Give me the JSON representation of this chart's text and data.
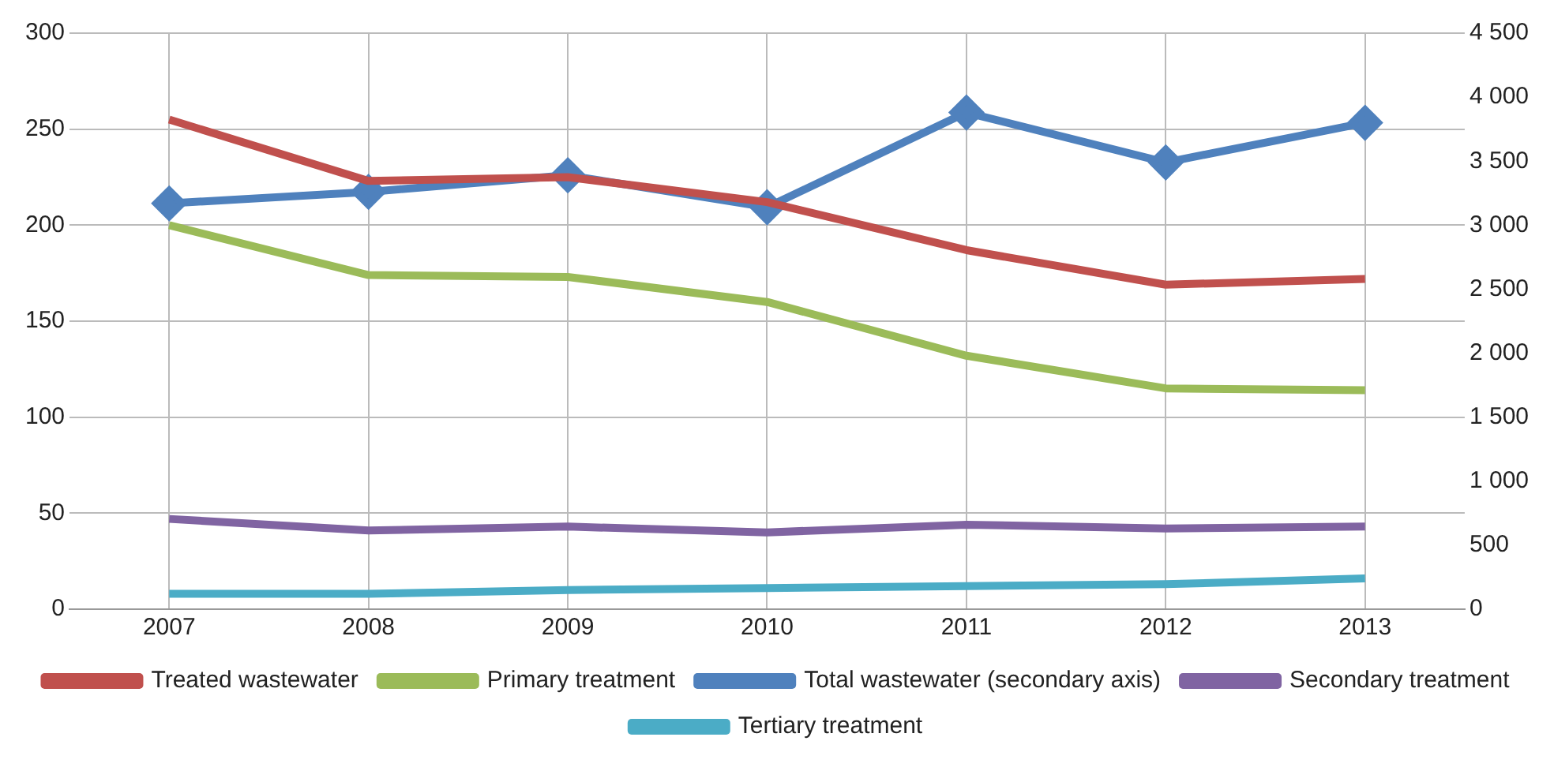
{
  "chart_data": {
    "type": "line",
    "categories": [
      "2007",
      "2008",
      "2009",
      "2010",
      "2011",
      "2012",
      "2013"
    ],
    "series": [
      {
        "name": "Treated wastewater",
        "color": "#c0504d",
        "values": [
          255,
          223,
          225,
          212,
          187,
          169,
          172
        ]
      },
      {
        "name": "Primary treatment",
        "color": "#9bbb59",
        "values": [
          200,
          174,
          173,
          160,
          132,
          115,
          114
        ]
      },
      {
        "name": "Total wastewater (secondary axis)",
        "color": "#4f81bd",
        "axis": "y2",
        "marker": "diamond",
        "values": [
          3170,
          3260,
          3390,
          3140,
          3880,
          3490,
          3800
        ]
      },
      {
        "name": "Secondary treatment",
        "color": "#8064a2",
        "values": [
          47,
          41,
          43,
          40,
          44,
          42,
          43
        ]
      },
      {
        "name": "Tertiary treatment",
        "color": "#4bacc6",
        "values": [
          8,
          8,
          10,
          11,
          12,
          13,
          16
        ]
      }
    ],
    "ylim": [
      0,
      300
    ],
    "yticks": [
      0,
      50,
      100,
      150,
      200,
      250,
      300
    ],
    "y2lim": [
      0,
      4500
    ],
    "y2ticks": [
      0,
      500,
      {
        "value": 1000,
        "label": "1 000"
      },
      {
        "value": 1500,
        "label": "1 500"
      },
      {
        "value": 2000,
        "label": "2 000"
      },
      {
        "value": 2500,
        "label": "2 500"
      },
      {
        "value": 3000,
        "label": "3 000"
      },
      {
        "value": 3500,
        "label": "3 500"
      },
      {
        "value": 4000,
        "label": "4 000"
      },
      {
        "value": 4500,
        "label": "4 500"
      }
    ],
    "grid": true,
    "legend": "bottom",
    "marker": "none",
    "line_style": "solid"
  }
}
